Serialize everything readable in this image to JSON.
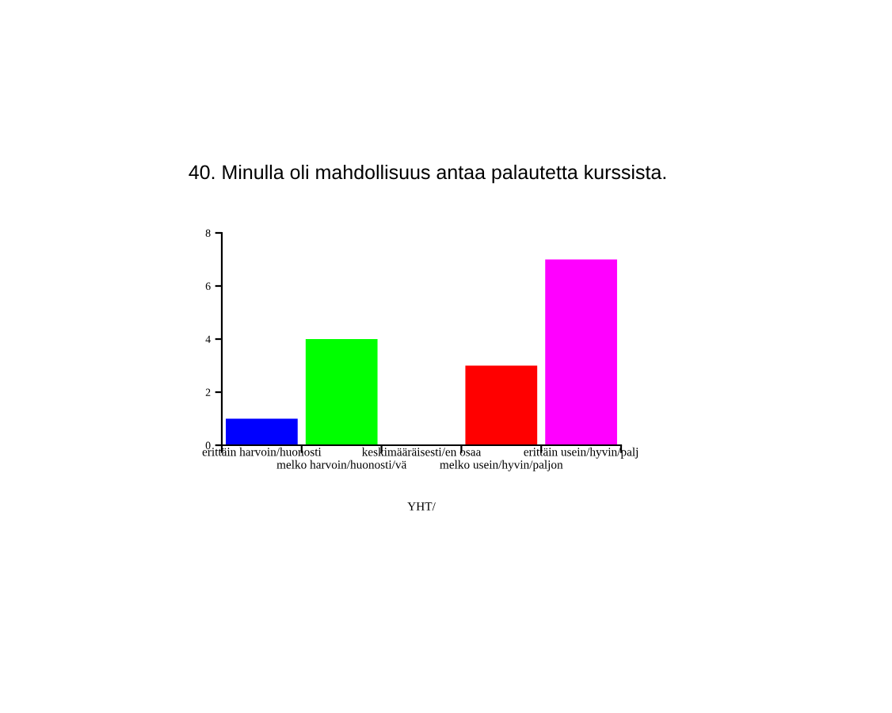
{
  "chart_data": {
    "type": "bar",
    "title": "40. Minulla oli mahdollisuus antaa palautetta kurssista.",
    "xlabel": "YHT/",
    "categories": [
      "erittäin harvoin/huonosti",
      "melko harvoin/huonosti/vä",
      "keskimääräisesti/en osaa",
      "melko usein/hyvin/paljon",
      "erittäin usein/hyvin/palj"
    ],
    "values": [
      1,
      4,
      0,
      3,
      7
    ],
    "colors": [
      "#0000ff",
      "#00ff00",
      "#ffff00",
      "#ff0000",
      "#ff00ff"
    ],
    "ylim": [
      0,
      8
    ],
    "yticks": [
      0,
      2,
      4,
      6,
      8
    ],
    "grid": false
  }
}
